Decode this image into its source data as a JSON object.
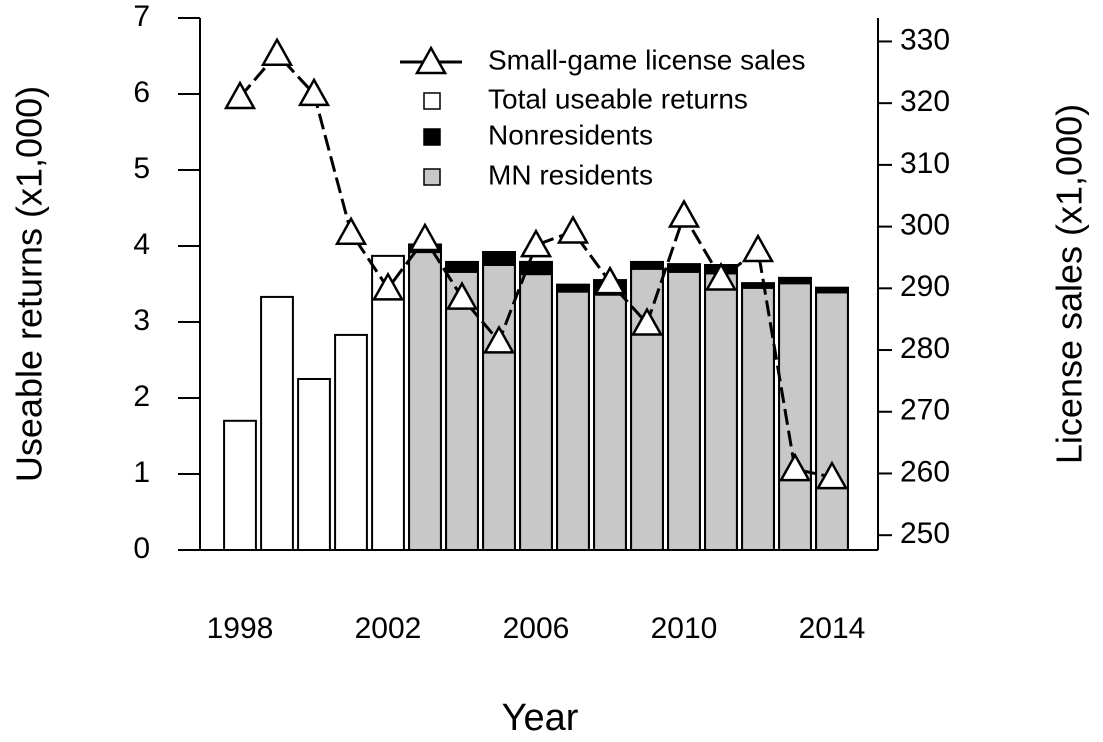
{
  "chart_data": {
    "type": "bar",
    "x_label": "Year",
    "y_label": "Useable returns (x1,000)",
    "y2_label": "License sales (x1,000)",
    "x": [
      1998,
      1999,
      2000,
      2001,
      2002,
      2003,
      2004,
      2005,
      2006,
      2007,
      2008,
      2009,
      2010,
      2011,
      2012,
      2013,
      2014
    ],
    "xticks": [
      1998,
      2002,
      2006,
      2010,
      2014
    ],
    "ylim": [
      0,
      7
    ],
    "yticks": [
      0,
      1,
      2,
      3,
      4,
      5,
      6,
      7
    ],
    "y2lim": [
      247.6,
      333.8
    ],
    "y2ticks": [
      250,
      260,
      270,
      280,
      290,
      300,
      310,
      320,
      330
    ],
    "series": [
      {
        "name": "Small-game license sales",
        "type": "line",
        "axis": "y2",
        "color": "#000000",
        "values": [
          321,
          328,
          321.5,
          299,
          290,
          298,
          288.5,
          281.4,
          297,
          299.2,
          291,
          284.3,
          301.8,
          291.6,
          296.2,
          260.7,
          259.4
        ]
      },
      {
        "name": "Total useable returns",
        "type": "bar",
        "color": "#ffffff",
        "values": [
          1.7,
          3.33,
          2.25,
          2.83,
          3.87,
          4.02,
          3.79,
          3.92,
          3.79,
          3.49,
          3.55,
          3.79,
          3.76,
          3.75,
          3.51,
          3.58,
          3.45
        ]
      },
      {
        "name": "Nonresidents",
        "type": "stack",
        "color": "#000000",
        "values": [
          null,
          null,
          null,
          null,
          null,
          0.1,
          0.13,
          0.17,
          0.16,
          0.09,
          0.19,
          0.09,
          0.1,
          0.11,
          0.06,
          0.07,
          0.06
        ]
      },
      {
        "name": "MN residents",
        "type": "stack-base",
        "color": "#c8c8c8",
        "values": [
          null,
          null,
          null,
          null,
          null,
          3.92,
          3.66,
          3.75,
          3.63,
          3.4,
          3.36,
          3.7,
          3.66,
          3.64,
          3.45,
          3.51,
          3.39
        ]
      }
    ]
  }
}
